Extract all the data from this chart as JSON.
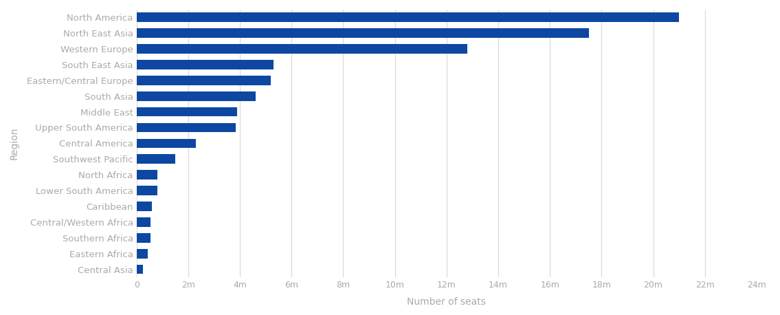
{
  "categories": [
    "North America",
    "North East Asia",
    "Western Europe",
    "South East Asia",
    "Eastern/Central Europe",
    "South Asia",
    "Middle East",
    "Upper South America",
    "Central America",
    "Southwest Pacific",
    "North Africa",
    "Lower South America",
    "Caribbean",
    "Central/Western Africa",
    "Southern Africa",
    "Eastern Africa",
    "Central Asia"
  ],
  "values": [
    21000000,
    17500000,
    12800000,
    5300000,
    5200000,
    4600000,
    3900000,
    3850000,
    2300000,
    1500000,
    800000,
    800000,
    600000,
    550000,
    540000,
    440000,
    250000
  ],
  "bar_color": "#0d47a1",
  "xlabel": "Number of seats",
  "ylabel": "Region",
  "xlim": [
    0,
    24000000
  ],
  "xtick_values": [
    0,
    2000000,
    4000000,
    6000000,
    8000000,
    10000000,
    12000000,
    14000000,
    16000000,
    18000000,
    20000000,
    22000000,
    24000000
  ],
  "xtick_labels": [
    "0",
    "2m",
    "4m",
    "6m",
    "8m",
    "10m",
    "12m",
    "14m",
    "16m",
    "18m",
    "20m",
    "22m",
    "24m"
  ],
  "background_color": "#ffffff",
  "grid_color": "#d9d9d9",
  "bar_height": 0.6,
  "tick_label_color": "#aaaaaa",
  "axis_label_color": "#aaaaaa",
  "ylabel_fontsize": 10,
  "xlabel_fontsize": 10,
  "tick_fontsize": 9,
  "ytick_fontsize": 9.5
}
